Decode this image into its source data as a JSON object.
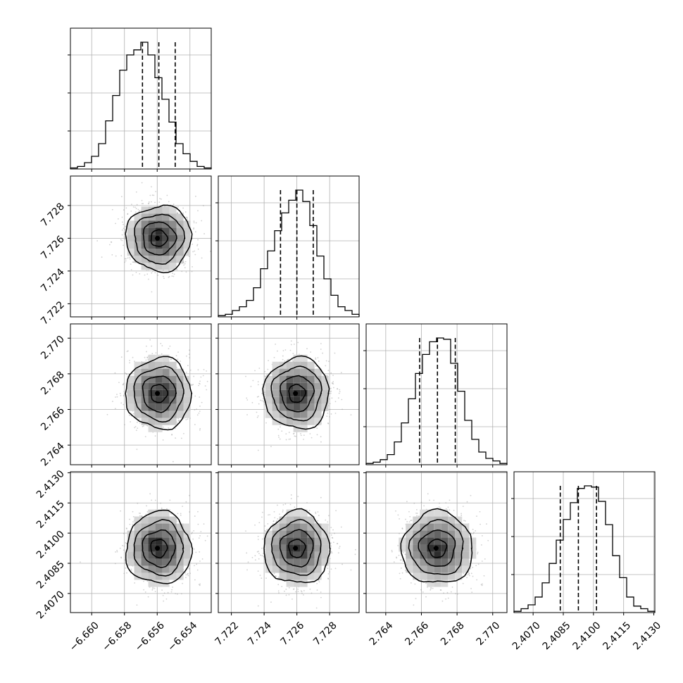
{
  "chart_data": {
    "type": "corner",
    "parameters": [
      {
        "range": [
          -6.6613,
          -6.6527
        ],
        "ticks": [
          -6.66,
          -6.658,
          -6.656,
          -6.654
        ],
        "tick_labels": [
          "−6.660",
          "−6.658",
          "−6.656",
          "−6.654"
        ],
        "median": -6.6559,
        "q16": -6.6569,
        "q84": -6.6549,
        "hist_heights": [
          0.008,
          0.02,
          0.05,
          0.1,
          0.2,
          0.38,
          0.58,
          0.78,
          0.9,
          0.94,
          1.0,
          0.9,
          0.72,
          0.55,
          0.37,
          0.2,
          0.12,
          0.06,
          0.02,
          0.008
        ]
      },
      {
        "range": [
          7.7212,
          7.7298
        ],
        "ticks": [
          7.722,
          7.724,
          7.726,
          7.728
        ],
        "tick_labels": [
          "7.722",
          "7.724",
          "7.726",
          "7.728"
        ],
        "median": 7.726,
        "q16": 7.725,
        "q84": 7.727,
        "hist_heights": [
          0.01,
          0.02,
          0.05,
          0.08,
          0.13,
          0.23,
          0.38,
          0.52,
          0.68,
          0.82,
          0.92,
          1.0,
          0.91,
          0.72,
          0.48,
          0.3,
          0.17,
          0.08,
          0.05,
          0.02
        ]
      },
      {
        "range": [
          2.7629,
          2.7708
        ],
        "ticks": [
          2.764,
          2.766,
          2.768,
          2.77
        ],
        "tick_labels": [
          "2.764",
          "2.766",
          "2.768",
          "2.770"
        ],
        "median": 2.7669,
        "q16": 2.7659,
        "q84": 2.7679,
        "hist_heights": [
          0.01,
          0.02,
          0.04,
          0.08,
          0.18,
          0.33,
          0.52,
          0.72,
          0.87,
          0.97,
          1.0,
          0.99,
          0.8,
          0.58,
          0.35,
          0.2,
          0.1,
          0.05,
          0.03,
          0.01
        ]
      },
      {
        "range": [
          2.40605,
          2.41305
        ],
        "ticks": [
          2.407,
          2.4085,
          2.41,
          2.4115,
          2.413
        ],
        "tick_labels": [
          "2.4070",
          "2.4085",
          "2.4100",
          "2.4115",
          "2.4130"
        ],
        "median": 2.40925,
        "q16": 2.40835,
        "q84": 2.41015,
        "hist_heights": [
          0.01,
          0.03,
          0.06,
          0.12,
          0.23,
          0.38,
          0.56,
          0.72,
          0.85,
          0.96,
          0.98,
          0.97,
          0.86,
          0.68,
          0.44,
          0.27,
          0.12,
          0.05,
          0.03,
          0.01
        ]
      }
    ],
    "quantiles": [
      0.16,
      0.5,
      0.84
    ],
    "grid": true,
    "contour_levels_sigma": [
      0.5,
      1.0,
      1.5,
      2.0
    ]
  }
}
